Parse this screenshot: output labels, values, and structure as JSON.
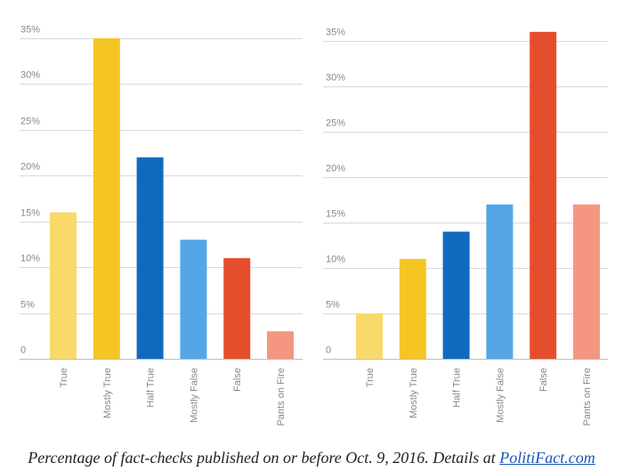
{
  "chart_data": [
    {
      "type": "bar",
      "title": "",
      "xlabel": "",
      "ylabel": "",
      "ylim": [
        0,
        35
      ],
      "ytick_values": [
        0,
        5,
        10,
        15,
        20,
        25,
        30,
        35
      ],
      "ytick_labels": [
        "0",
        "5%",
        "10%",
        "15%",
        "20%",
        "25%",
        "30%",
        "35%"
      ],
      "grid": true,
      "categories": [
        "True",
        "Mostly True",
        "Half True",
        "Mostly False",
        "False",
        "Pants on Fire"
      ],
      "values": [
        16,
        35,
        22,
        13,
        11,
        3
      ],
      "colors": [
        "#fad96b",
        "#f5c523",
        "#0f6abf",
        "#54a6e6",
        "#e54e2d",
        "#f59680"
      ]
    },
    {
      "type": "bar",
      "title": "",
      "xlabel": "",
      "ylabel": "",
      "ylim": [
        0,
        35
      ],
      "ytick_values": [
        0,
        5,
        10,
        15,
        20,
        25,
        30,
        35
      ],
      "ytick_labels": [
        "0",
        "5%",
        "10%",
        "15%",
        "20%",
        "25%",
        "30%",
        "35%"
      ],
      "grid": true,
      "categories": [
        "True",
        "Mostly True",
        "Half True",
        "Mostly False",
        "False",
        "Pants on Fire"
      ],
      "values": [
        5,
        11,
        14,
        17,
        36,
        17
      ],
      "colors": [
        "#fad96b",
        "#f5c523",
        "#0f6abf",
        "#54a6e6",
        "#e54e2d",
        "#f59680"
      ]
    }
  ],
  "caption": {
    "text": "Percentage of fact-checks published on or before Oct. 9, 2016. Details at ",
    "link_text": "PolitiFact.com"
  }
}
